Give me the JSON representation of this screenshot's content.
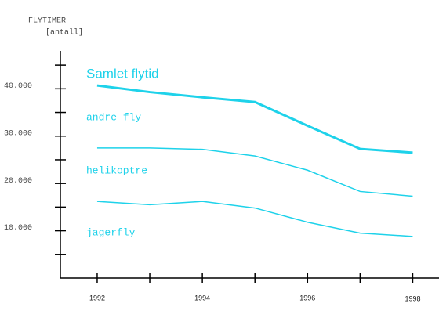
{
  "chart_data": {
    "type": "line",
    "stacked": true,
    "y_axis_label": "FLYTIMER",
    "y_axis_unit": "[antall]",
    "total_label": "Samlet flytid",
    "color": "#1ed2ea",
    "x": [
      1992,
      1993,
      1994,
      1995,
      1996,
      1997,
      1998
    ],
    "series": [
      {
        "name": "jagerfly",
        "color": "#1ed2ea",
        "values": [
          16200,
          15500,
          16200,
          14800,
          11800,
          9500,
          8800
        ]
      },
      {
        "name": "helikoptre",
        "color": "#1ed2ea",
        "values": [
          11300,
          12000,
          11000,
          11000,
          11000,
          8800,
          8500
        ]
      },
      {
        "name": "andre fly",
        "color": "#1ed2ea",
        "values": [
          13200,
          11800,
          11000,
          11400,
          9400,
          9000,
          9200
        ]
      }
    ],
    "xlim": [
      1991.3,
      1998.5
    ],
    "xticks": [
      1992,
      1994,
      1996,
      1998
    ],
    "xminorticks": [
      1993,
      1995,
      1997
    ],
    "ylim": [
      0,
      48000
    ],
    "yticks": [
      {
        "value": 10000,
        "label": "10.000"
      },
      {
        "value": 20000,
        "label": "20.000"
      },
      {
        "value": 30000,
        "label": "30.000"
      },
      {
        "value": 40000,
        "label": "40.000"
      }
    ],
    "yminorticks": [
      5000,
      15000,
      25000,
      35000,
      45000
    ]
  }
}
